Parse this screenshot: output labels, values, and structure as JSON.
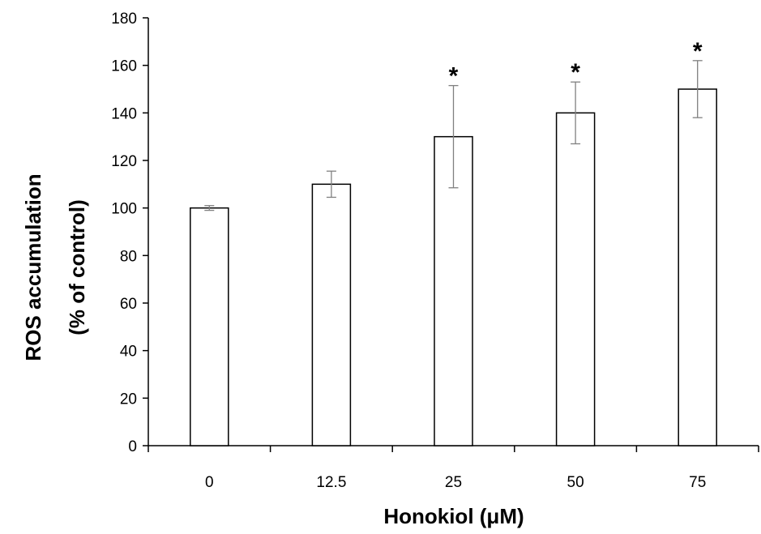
{
  "chart_data": {
    "type": "bar",
    "categories": [
      "0",
      "12.5",
      "25",
      "50",
      "75"
    ],
    "values": [
      100,
      110,
      130,
      140,
      150
    ],
    "error_low": [
      99,
      104.5,
      108.5,
      127,
      138
    ],
    "error_high": [
      101,
      115.5,
      151.5,
      153,
      162
    ],
    "significance": [
      "",
      "",
      "*",
      "*",
      "*"
    ],
    "xlabel": "Honokiol (μM)",
    "ylabel": [
      "ROS accumulation",
      "(% of control)"
    ],
    "ylim": [
      0,
      180
    ],
    "yticks": [
      "0",
      "20",
      "40",
      "60",
      "80",
      "100",
      "120",
      "140",
      "160",
      "180"
    ],
    "grid": false,
    "bar_fill": "#ffffff",
    "bar_stroke": "#000000",
    "error_bar_color": "#808080"
  }
}
